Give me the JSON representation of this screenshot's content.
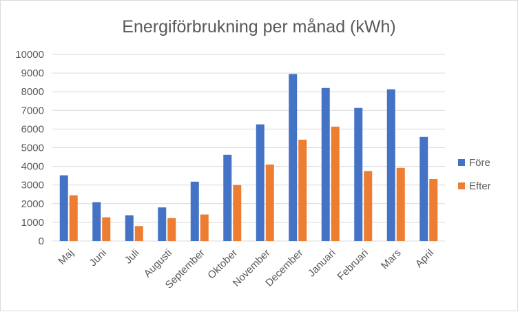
{
  "chart_data": {
    "type": "bar",
    "title": "Energiförbrukning per månad (kWh)",
    "xlabel": "",
    "ylabel": "",
    "ylim": [
      0,
      10000
    ],
    "yticks": [
      0,
      1000,
      2000,
      3000,
      4000,
      5000,
      6000,
      7000,
      8000,
      9000,
      10000
    ],
    "grid": true,
    "legend_position": "right",
    "categories": [
      "Maj",
      "Juni",
      "Juli",
      "Augusti",
      "September",
      "Oktober",
      "November",
      "December",
      "Januari",
      "Februari",
      "Mars",
      "April"
    ],
    "series": [
      {
        "name": "Före",
        "color": "#4472c4",
        "values": [
          3520,
          2080,
          1380,
          1800,
          3180,
          4620,
          6250,
          8950,
          8200,
          7130,
          8130,
          5580
        ]
      },
      {
        "name": "Efter",
        "color": "#ed7d31",
        "values": [
          2450,
          1270,
          800,
          1230,
          1420,
          3000,
          4100,
          5430,
          6130,
          3750,
          3920,
          3320
        ]
      }
    ]
  }
}
